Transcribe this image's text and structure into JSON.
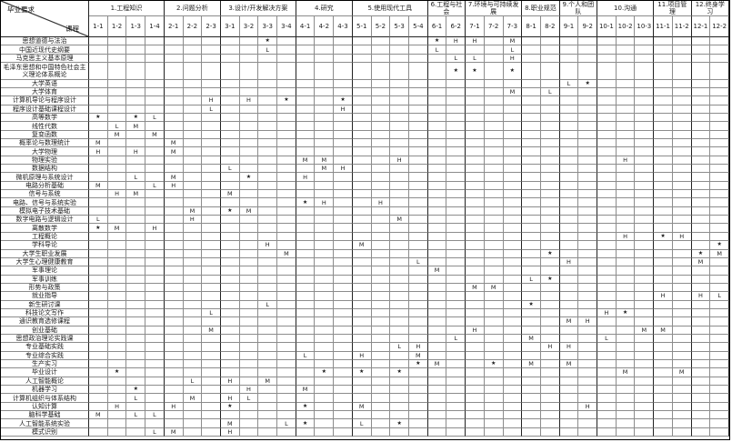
{
  "corner": {
    "top_label": "毕业要求",
    "bottom_label": "课程"
  },
  "colors": {
    "background": "#ffffff",
    "outer_border": "#000000",
    "grid_line": "#8c8c8c",
    "group_line": "#222222",
    "text": "#1a1a1a"
  },
  "legend_marks": [
    "H",
    "M",
    "L",
    "★"
  ],
  "groups": [
    {
      "label": "1.工程知识",
      "cols": [
        "1-1",
        "1-2",
        "1-3",
        "1-4"
      ]
    },
    {
      "label": "2.问题分析",
      "cols": [
        "2-1",
        "2-2",
        "2-3"
      ]
    },
    {
      "label": "3.设计/开发解决方案",
      "cols": [
        "3-1",
        "3-2",
        "3-3",
        "3-4"
      ]
    },
    {
      "label": "4.研究",
      "cols": [
        "4-1",
        "4-2",
        "4-3"
      ]
    },
    {
      "label": "5.使用现代工具",
      "cols": [
        "5-1",
        "5-2",
        "5-3",
        "5-4"
      ]
    },
    {
      "label": "6.工程与社会",
      "cols": [
        "6-1",
        "6-2"
      ]
    },
    {
      "label": "7.环境与可持续发展",
      "cols": [
        "7-1",
        "7-2",
        "7-3"
      ]
    },
    {
      "label": "8.职业规范",
      "cols": [
        "8-1",
        "8-2"
      ]
    },
    {
      "label": "9.个人和团队",
      "cols": [
        "9-1",
        "9-2"
      ]
    },
    {
      "label": "10.沟通",
      "cols": [
        "10-1",
        "10-2",
        "10-3"
      ]
    },
    {
      "label": "11.项目管理",
      "cols": [
        "11-1",
        "11-2"
      ]
    },
    {
      "label": "12.终身学习",
      "cols": [
        "12-1",
        "12-2"
      ]
    }
  ],
  "rows": [
    {
      "name": "思想道德与法治",
      "marks": {
        "3-3": "★",
        "6-1": "★",
        "6-2": "H",
        "7-1": "H",
        "7-3": "M"
      }
    },
    {
      "name": "中国近现代史纲要",
      "marks": {
        "3-3": "L",
        "6-1": "L",
        "7-3": "L"
      }
    },
    {
      "name": "马克思主义基本原理",
      "marks": {
        "6-2": "L",
        "7-1": "L",
        "7-3": "H"
      }
    },
    {
      "name": "毛泽东思想和中国特色社会主义理论体系概论",
      "tall": true,
      "marks": {
        "6-2": "★",
        "7-1": "★",
        "7-3": "★"
      }
    },
    {
      "name": "大学英语",
      "marks": {
        "9-1": "L",
        "9-2": "★"
      }
    },
    {
      "name": "大学体育",
      "marks": {
        "7-3": "M",
        "8-2": "L"
      }
    },
    {
      "name": "计算机导论与程序设计",
      "marks": {
        "2-3": "H",
        "3-2": "H",
        "3-4": "★",
        "4-3": "★"
      }
    },
    {
      "name": "程序设计基础课程设计",
      "marks": {
        "2-3": "L",
        "4-3": "H"
      }
    },
    {
      "name": "高等数学",
      "marks": {
        "1-1": "★",
        "1-3": "★",
        "1-4": "L"
      }
    },
    {
      "name": "线性代数",
      "marks": {
        "1-2": "L",
        "1-3": "M"
      }
    },
    {
      "name": "复变函数",
      "marks": {
        "1-2": "M",
        "1-4": "M"
      }
    },
    {
      "name": "概率论与数理统计",
      "marks": {
        "1-1": "M",
        "2-1": "M"
      }
    },
    {
      "name": "大学物理",
      "marks": {
        "1-1": "H",
        "1-3": "H",
        "2-1": "M"
      }
    },
    {
      "name": "物理实验",
      "marks": {
        "4-1": "M",
        "4-2": "M",
        "5-3": "H",
        "10-2": "H"
      }
    },
    {
      "name": "数据结构",
      "marks": {
        "3-1": "L",
        "4-2": "M",
        "4-3": "H"
      }
    },
    {
      "name": "微机原理与系统设计",
      "marks": {
        "1-3": "L",
        "2-1": "M",
        "3-2": "★",
        "4-1": "H"
      }
    },
    {
      "name": "电路分析基础",
      "marks": {
        "1-1": "M",
        "1-4": "L",
        "2-1": "H"
      }
    },
    {
      "name": "信号与系统",
      "marks": {
        "1-2": "H",
        "1-3": "M",
        "3-1": "M"
      }
    },
    {
      "name": "电路、信号与系统实验",
      "marks": {
        "4-1": "★",
        "4-2": "H",
        "5-2": "H"
      }
    },
    {
      "name": "模拟电子技术基础",
      "marks": {
        "2-2": "M",
        "3-1": "★",
        "3-2": "M"
      }
    },
    {
      "name": "数字电路与逻辑设计",
      "marks": {
        "1-1": "L",
        "2-2": "H",
        "5-3": "M"
      }
    },
    {
      "name": "离散数学",
      "marks": {
        "1-1": "★",
        "1-2": "M",
        "1-4": "H"
      }
    },
    {
      "name": "工程概论",
      "marks": {
        "10-2": "H",
        "11-1": "★",
        "11-2": "H"
      }
    },
    {
      "name": "学科导论",
      "marks": {
        "3-3": "H",
        "5-1": "M",
        "12-2": "★"
      }
    },
    {
      "name": "大学生职业发展",
      "marks": {
        "3-4": "M",
        "8-2": "★",
        "12-1": "★",
        "12-2": "M"
      }
    },
    {
      "name": "大学生心理健康教育",
      "marks": {
        "5-4": "L",
        "9-1": "H",
        "12-1": "M"
      }
    },
    {
      "name": "军事理论",
      "marks": {
        "6-1": "M"
      }
    },
    {
      "name": "军事训练",
      "marks": {
        "8-1": "L",
        "8-2": "★"
      }
    },
    {
      "name": "形势与政策",
      "marks": {
        "7-1": "M",
        "7-2": "M"
      }
    },
    {
      "name": "就业指导",
      "marks": {
        "11-1": "H",
        "12-1": "H",
        "12-2": "L"
      }
    },
    {
      "name": "新生研讨课",
      "marks": {
        "3-3": "L",
        "8-1": "★"
      }
    },
    {
      "name": "科技论文写作",
      "marks": {
        "2-3": "L",
        "10-1": "H",
        "10-2": "★"
      }
    },
    {
      "name": "通识教育选修课程",
      "marks": {
        "9-1": "M",
        "9-2": "H"
      }
    },
    {
      "name": "创业基础",
      "marks": {
        "2-3": "M",
        "7-1": "H",
        "10-3": "M",
        "11-1": "M"
      }
    },
    {
      "name": "思想政治理论实践课",
      "marks": {
        "6-2": "L",
        "8-1": "M",
        "10-1": "L"
      }
    },
    {
      "name": "专业基础实践",
      "marks": {
        "5-3": "L",
        "5-4": "H",
        "8-2": "H",
        "9-1": "H"
      }
    },
    {
      "name": "专业综合实践",
      "marks": {
        "4-1": "L",
        "5-1": "H",
        "5-4": "M"
      }
    },
    {
      "name": "生产实习",
      "marks": {
        "5-4": "★",
        "6-1": "M",
        "7-2": "★",
        "8-1": "M",
        "9-1": "M"
      }
    },
    {
      "name": "毕业设计",
      "marks": {
        "1-2": "★",
        "4-2": "★",
        "5-1": "★",
        "5-3": "★",
        "10-2": "M",
        "11-2": "M"
      }
    },
    {
      "name": "人工智能概论",
      "marks": {
        "2-2": "L",
        "3-1": "H",
        "3-3": "M"
      }
    },
    {
      "name": "机器学习",
      "marks": {
        "1-3": "★",
        "3-2": "H",
        "4-1": "M"
      }
    },
    {
      "name": "计算机组织与体系结构",
      "marks": {
        "1-3": "L",
        "2-2": "M",
        "3-1": "H",
        "3-2": "L"
      }
    },
    {
      "name": "认知计算",
      "marks": {
        "1-2": "H",
        "2-1": "H",
        "3-1": "★",
        "4-1": "★",
        "5-1": "M",
        "9-2": "H"
      }
    },
    {
      "name": "脑科学基础",
      "marks": {
        "1-1": "M",
        "1-3": "L",
        "1-4": "L"
      }
    },
    {
      "name": "人工智能系统实验",
      "marks": {
        "3-1": "M",
        "3-4": "L",
        "4-1": "★",
        "5-1": "L",
        "5-3": "★"
      }
    },
    {
      "name": "模式识别",
      "marks": {
        "1-4": "L",
        "2-1": "M",
        "3-1": "H"
      }
    }
  ]
}
